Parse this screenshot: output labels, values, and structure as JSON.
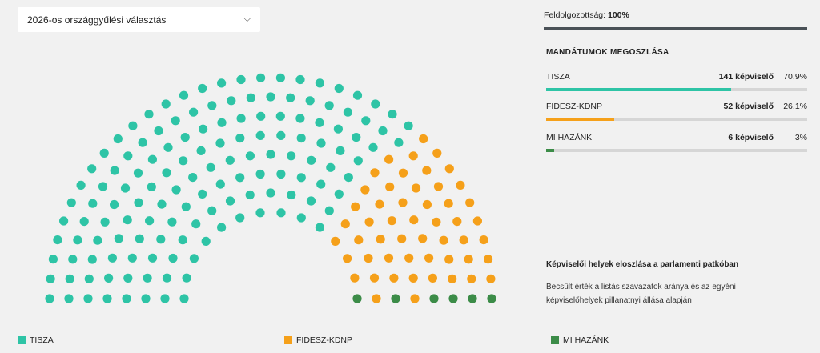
{
  "selector": {
    "label": "2026-os országgyűlési választás"
  },
  "status": {
    "label": "Feldolgozottság:",
    "value": "100%"
  },
  "section_title": "MANDÁTUMOK MEGOSZLÁSA",
  "colors": {
    "tisza": "#2ec4a6",
    "fidesz": "#f5a01a",
    "mihazank": "#3c8c48",
    "track": "#d6d6d6"
  },
  "parties": [
    {
      "name": "TISZA",
      "seats_label": "141 képviselő",
      "pct_label": "70.9%",
      "share": 0.709,
      "color": "#2ec4a6"
    },
    {
      "name": "FIDESZ-KDNP",
      "seats_label": "52 képviselő",
      "pct_label": "26.1%",
      "share": 0.261,
      "color": "#f5a01a"
    },
    {
      "name": "MI HAZÁNK",
      "seats_label": "6 képviselő",
      "pct_label": "3%",
      "share": 0.03,
      "color": "#3c8c48"
    }
  ],
  "caption": {
    "title": "Képviselői helyek eloszlása a parlamenti patkóban",
    "text": "Becsült érték a listás szavazatok aránya és az egyéni képviselőhelyek pillanatnyi állása alapján"
  },
  "legend": [
    {
      "label": "TISZA",
      "color": "#2ec4a6"
    },
    {
      "label": "FIDESZ-KDNP",
      "color": "#f5a01a"
    },
    {
      "label": "MI HAZÁNK",
      "color": "#3c8c48"
    }
  ],
  "chart_data": {
    "type": "parliament",
    "total_seats": 199,
    "series": [
      {
        "name": "TISZA",
        "values": [
          141
        ]
      },
      {
        "name": "FIDESZ-KDNP",
        "values": [
          52
        ]
      },
      {
        "name": "MI HAZÁNK",
        "values": [
          6
        ]
      }
    ]
  }
}
